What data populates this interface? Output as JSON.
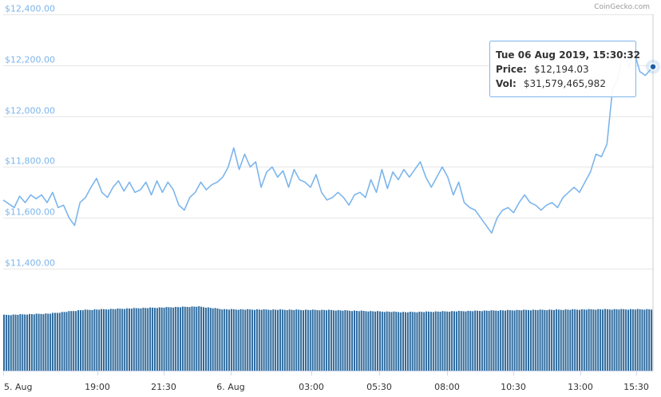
{
  "chart_data": {
    "type": "line",
    "credit": "CoinGecko.com",
    "price_axis": {
      "ticks": [
        "$12,400.00",
        "$12,200.00",
        "$12,000.00",
        "$11,800.00",
        "$11,600.00",
        "$11,400.00"
      ],
      "tick_values": [
        12400,
        12200,
        12000,
        11800,
        11600,
        11400
      ],
      "ylim": [
        11400,
        12400
      ]
    },
    "x_axis": {
      "ticks": [
        "5. Aug",
        "19:00",
        "21:30",
        "6. Aug",
        "03:00",
        "05:30",
        "08:00",
        "10:30",
        "13:00",
        "15:30"
      ],
      "tick_hours": [
        0,
        19,
        21.5,
        24,
        27,
        29.5,
        32,
        34.5,
        37,
        39.5
      ],
      "range_hours": [
        15.85,
        39.53
      ]
    },
    "price_series": {
      "name": "Price",
      "color": "#7cb5ec",
      "points": [
        [
          15.85,
          11670
        ],
        [
          16.05,
          11655
        ],
        [
          16.25,
          11640
        ],
        [
          16.45,
          11685
        ],
        [
          16.65,
          11660
        ],
        [
          16.85,
          11690
        ],
        [
          17.05,
          11675
        ],
        [
          17.25,
          11690
        ],
        [
          17.45,
          11660
        ],
        [
          17.65,
          11700
        ],
        [
          17.85,
          11640
        ],
        [
          18.05,
          11650
        ],
        [
          18.25,
          11600
        ],
        [
          18.45,
          11570
        ],
        [
          18.65,
          11660
        ],
        [
          18.85,
          11680
        ],
        [
          19.05,
          11720
        ],
        [
          19.25,
          11755
        ],
        [
          19.45,
          11700
        ],
        [
          19.65,
          11680
        ],
        [
          19.85,
          11720
        ],
        [
          20.05,
          11745
        ],
        [
          20.25,
          11705
        ],
        [
          20.45,
          11740
        ],
        [
          20.65,
          11700
        ],
        [
          20.85,
          11710
        ],
        [
          21.05,
          11740
        ],
        [
          21.25,
          11690
        ],
        [
          21.45,
          11745
        ],
        [
          21.65,
          11700
        ],
        [
          21.85,
          11740
        ],
        [
          22.05,
          11710
        ],
        [
          22.25,
          11650
        ],
        [
          22.45,
          11630
        ],
        [
          22.65,
          11680
        ],
        [
          22.85,
          11700
        ],
        [
          23.05,
          11740
        ],
        [
          23.25,
          11710
        ],
        [
          23.45,
          11730
        ],
        [
          23.65,
          11740
        ],
        [
          23.85,
          11760
        ],
        [
          24.05,
          11800
        ],
        [
          24.25,
          11875
        ],
        [
          24.45,
          11790
        ],
        [
          24.65,
          11850
        ],
        [
          24.85,
          11800
        ],
        [
          25.05,
          11820
        ],
        [
          25.25,
          11720
        ],
        [
          25.45,
          11780
        ],
        [
          25.65,
          11800
        ],
        [
          25.85,
          11760
        ],
        [
          26.05,
          11785
        ],
        [
          26.25,
          11720
        ],
        [
          26.45,
          11790
        ],
        [
          26.65,
          11750
        ],
        [
          26.85,
          11740
        ],
        [
          27.05,
          11720
        ],
        [
          27.25,
          11770
        ],
        [
          27.45,
          11700
        ],
        [
          27.65,
          11670
        ],
        [
          27.85,
          11680
        ],
        [
          28.05,
          11700
        ],
        [
          28.25,
          11680
        ],
        [
          28.45,
          11650
        ],
        [
          28.65,
          11690
        ],
        [
          28.85,
          11700
        ],
        [
          29.05,
          11680
        ],
        [
          29.25,
          11750
        ],
        [
          29.45,
          11700
        ],
        [
          29.65,
          11790
        ],
        [
          29.85,
          11715
        ],
        [
          30.05,
          11780
        ],
        [
          30.25,
          11750
        ],
        [
          30.45,
          11790
        ],
        [
          30.65,
          11760
        ],
        [
          30.85,
          11790
        ],
        [
          31.05,
          11820
        ],
        [
          31.25,
          11760
        ],
        [
          31.45,
          11720
        ],
        [
          31.65,
          11760
        ],
        [
          31.85,
          11800
        ],
        [
          32.05,
          11760
        ],
        [
          32.25,
          11690
        ],
        [
          32.45,
          11740
        ],
        [
          32.65,
          11660
        ],
        [
          32.85,
          11640
        ],
        [
          33.05,
          11630
        ],
        [
          33.25,
          11600
        ],
        [
          33.45,
          11570
        ],
        [
          33.65,
          11540
        ],
        [
          33.85,
          11600
        ],
        [
          34.05,
          11630
        ],
        [
          34.25,
          11640
        ],
        [
          34.45,
          11620
        ],
        [
          34.65,
          11660
        ],
        [
          34.85,
          11690
        ],
        [
          35.05,
          11660
        ],
        [
          35.25,
          11650
        ],
        [
          35.45,
          11630
        ],
        [
          35.65,
          11650
        ],
        [
          35.85,
          11660
        ],
        [
          36.05,
          11640
        ],
        [
          36.25,
          11680
        ],
        [
          36.45,
          11700
        ],
        [
          36.65,
          11720
        ],
        [
          36.85,
          11700
        ],
        [
          37.05,
          11740
        ],
        [
          37.25,
          11780
        ],
        [
          37.45,
          11850
        ],
        [
          37.65,
          11840
        ],
        [
          37.85,
          11890
        ],
        [
          38.05,
          12100
        ],
        [
          38.25,
          12150
        ],
        [
          38.45,
          12260
        ],
        [
          38.65,
          12190
        ],
        [
          38.85,
          12250
        ],
        [
          39.05,
          12175
        ],
        [
          39.25,
          12160
        ],
        [
          39.53,
          12194.03
        ]
      ]
    },
    "volume_series": {
      "name": "Volume",
      "color": "#2e6b9e",
      "bar_count": 280,
      "levels": [
        [
          0.0,
          0.79
        ],
        [
          0.07,
          0.81
        ],
        [
          0.12,
          0.86
        ],
        [
          0.22,
          0.89
        ],
        [
          0.3,
          0.91
        ],
        [
          0.34,
          0.87
        ],
        [
          0.5,
          0.86
        ],
        [
          0.62,
          0.83
        ],
        [
          0.8,
          0.86
        ],
        [
          0.92,
          0.87
        ],
        [
          1.0,
          0.87
        ]
      ]
    },
    "tooltip": {
      "title": "Tue 06 Aug 2019, 15:30:32",
      "price_label": "Price:",
      "price_value": "$12,194.03",
      "vol_label": "Vol:",
      "vol_value": "$31,579,465,982"
    }
  }
}
